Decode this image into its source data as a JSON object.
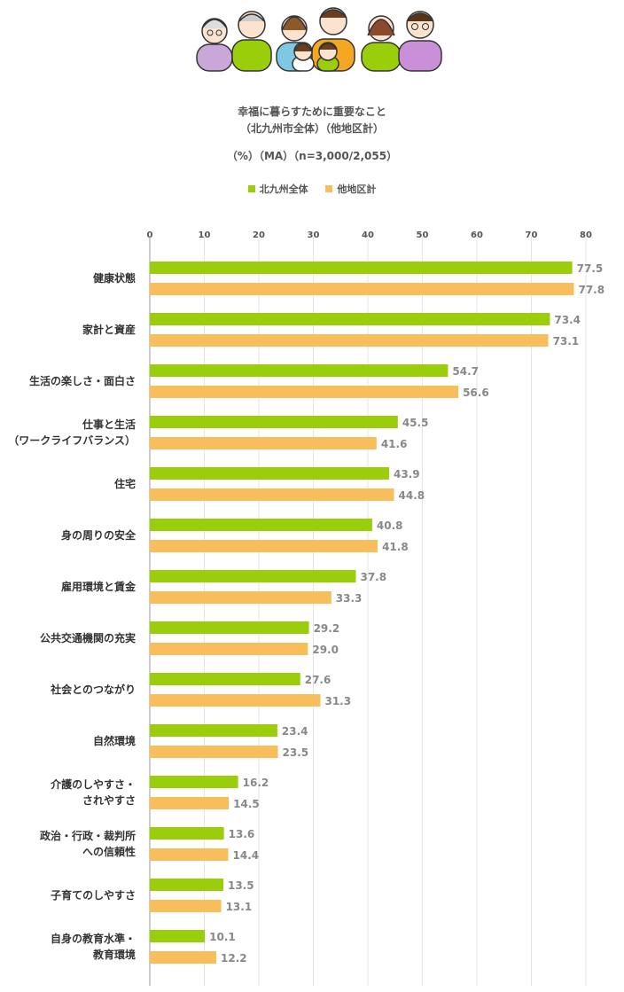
{
  "title": {
    "line1": "幸福に暮らすために重要なこと",
    "line2": "（北九州市全体）（他地区計）",
    "line3": "（%）（MA）（n=3,000/2,055）"
  },
  "colors": {
    "series1": "#9ACD0A",
    "series2": "#F9BE5C",
    "grid": "#e6e6e6",
    "axis": "#999999"
  },
  "chart_data": {
    "type": "bar",
    "orientation": "horizontal",
    "xlim": [
      0,
      80
    ],
    "ticks": [
      "0",
      "10",
      "20",
      "30",
      "40",
      "50",
      "60",
      "70",
      "80"
    ],
    "grid": true,
    "legend_position": "top-center",
    "categories": [
      [
        "健康状態"
      ],
      [
        "家計と資産"
      ],
      [
        "生活の楽しさ・面白さ"
      ],
      [
        "仕事と生活",
        "（ワークライフバランス）"
      ],
      [
        "住宅"
      ],
      [
        "身の周りの安全"
      ],
      [
        "雇用環境と賃金"
      ],
      [
        "公共交通機関の充実"
      ],
      [
        "社会とのつながり"
      ],
      [
        "自然環境"
      ],
      [
        "介護のしやすさ・",
        "されやすさ"
      ],
      [
        "政治・行政・裁判所",
        "への信頼性"
      ],
      [
        "子育てのしやすさ"
      ],
      [
        "自身の教育水準・",
        "教育環境"
      ]
    ],
    "series": [
      {
        "name": "北九州全体",
        "values": [
          77.5,
          73.4,
          54.7,
          45.5,
          43.9,
          40.8,
          37.8,
          29.2,
          27.6,
          23.4,
          16.2,
          13.6,
          13.5,
          10.1
        ],
        "labels": [
          "77.5",
          "73.4",
          "54.7",
          "45.5",
          "43.9",
          "40.8",
          "37.8",
          "29.2",
          "27.6",
          "23.4",
          "16.2",
          "13.6",
          "13.5",
          "10.1"
        ]
      },
      {
        "name": "他地区計",
        "values": [
          77.8,
          73.1,
          56.6,
          41.6,
          44.8,
          41.8,
          33.3,
          29.0,
          31.3,
          23.5,
          14.5,
          14.4,
          13.1,
          12.2
        ],
        "labels": [
          "77.8",
          "73.1",
          "56.6",
          "41.6",
          "44.8",
          "41.8",
          "33.3",
          "29.0",
          "31.3",
          "23.5",
          "14.5",
          "14.4",
          "13.1",
          "12.2"
        ]
      }
    ]
  }
}
